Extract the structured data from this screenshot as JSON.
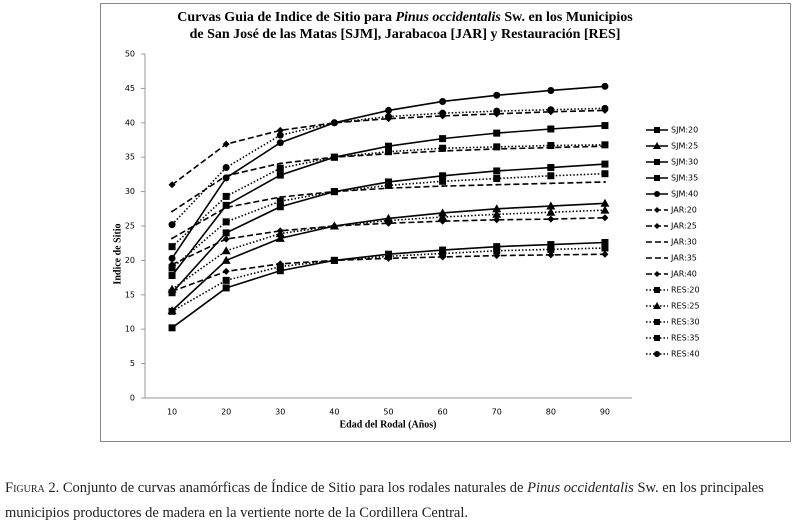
{
  "chart_data": {
    "type": "line",
    "title": [
      [
        "Curvas Guia de Indice de Sitio para ",
        "Pinus occidentalis",
        " Sw. en los Municipios"
      ],
      [
        "de San José de las Matas [SJM], Jarabacoa [JAR] y Restauración [RES]"
      ]
    ],
    "x_label": "Edad del Rodal (Años)",
    "y_label": "Indice de Sitio",
    "categories": [
      "10",
      "20",
      "30",
      "40",
      "50",
      "60",
      "70",
      "80",
      "90"
    ],
    "ylim": [
      0,
      50
    ],
    "yticks": [
      0,
      5,
      10,
      15,
      20,
      25,
      30,
      35,
      40,
      45,
      50
    ],
    "grid": false,
    "legend": "right",
    "series": [
      {
        "name": "SJM:20",
        "color": "#000000",
        "line_style": "solid",
        "marker": "square",
        "values": [
          10.2,
          16,
          18.5,
          20,
          20.9,
          21.5,
          22,
          22.3,
          22.6
        ]
      },
      {
        "name": "SJM:25",
        "color": "#000000",
        "line_style": "solid",
        "marker": "triangle",
        "values": [
          12.7,
          20,
          23.2,
          25,
          26.1,
          26.9,
          27.5,
          27.9,
          28.3
        ]
      },
      {
        "name": "SJM:30",
        "color": "#000000",
        "line_style": "solid",
        "marker": "square",
        "values": [
          15.3,
          24,
          27.8,
          30,
          31.4,
          32.3,
          33,
          33.5,
          34
        ]
      },
      {
        "name": "SJM:35",
        "color": "#000000",
        "line_style": "solid",
        "marker": "square",
        "values": [
          17.8,
          28,
          32.4,
          35,
          36.6,
          37.7,
          38.5,
          39.1,
          39.6
        ]
      },
      {
        "name": "SJM:40",
        "color": "#000000",
        "line_style": "solid",
        "marker": "circle",
        "values": [
          20.3,
          32,
          37.1,
          40,
          41.8,
          43.1,
          44,
          44.7,
          45.3
        ]
      },
      {
        "name": "JAR:20",
        "color": "#000000",
        "line_style": "dashed",
        "marker": "diamond",
        "values": [
          15.5,
          18.4,
          19.5,
          20,
          20.3,
          20.5,
          20.7,
          20.8,
          20.9
        ]
      },
      {
        "name": "JAR:25",
        "color": "#000000",
        "line_style": "dashed",
        "marker": "diamond",
        "values": [
          19.4,
          23.1,
          24.3,
          25,
          25.4,
          25.7,
          25.9,
          26,
          26.2
        ]
      },
      {
        "name": "JAR:30",
        "color": "#000000",
        "line_style": "dashed",
        "marker": "none",
        "values": [
          23.2,
          27.7,
          29.2,
          30,
          30.5,
          30.8,
          31,
          31.2,
          31.4
        ]
      },
      {
        "name": "JAR:35",
        "color": "#000000",
        "line_style": "dashed",
        "marker": "none",
        "values": [
          27.1,
          32.3,
          34.1,
          35,
          35.5,
          35.9,
          36.2,
          36.4,
          36.6
        ]
      },
      {
        "name": "JAR:40",
        "color": "#000000",
        "line_style": "dashed",
        "marker": "diamond",
        "values": [
          31,
          36.9,
          38.9,
          40,
          40.6,
          41,
          41.3,
          41.6,
          41.8
        ]
      },
      {
        "name": "RES:20",
        "color": "#000000",
        "line_style": "dotted",
        "marker": "square",
        "values": [
          12.6,
          17.1,
          19.1,
          20,
          20.6,
          21,
          21.4,
          21.6,
          21.8
        ]
      },
      {
        "name": "RES:25",
        "color": "#000000",
        "line_style": "dotted",
        "marker": "triangle",
        "values": [
          15.8,
          21.4,
          23.9,
          25,
          25.8,
          26.3,
          26.7,
          27,
          27.3
        ]
      },
      {
        "name": "RES:30",
        "color": "#000000",
        "line_style": "dotted",
        "marker": "square",
        "values": [
          18.9,
          25.6,
          28.6,
          30,
          30.9,
          31.5,
          31.9,
          32.3,
          32.6
        ]
      },
      {
        "name": "RES:35",
        "color": "#000000",
        "line_style": "dotted",
        "marker": "square",
        "values": [
          22,
          29.3,
          33.4,
          35,
          35.8,
          36.3,
          36.5,
          36.7,
          36.8
        ]
      },
      {
        "name": "RES:40",
        "color": "#000000",
        "line_style": "dotted",
        "marker": "circle",
        "values": [
          25.2,
          33.5,
          38.2,
          40,
          40.9,
          41.4,
          41.7,
          41.9,
          42.1
        ]
      }
    ]
  },
  "caption": {
    "label": "Figura 2.",
    "parts": [
      "Conjunto de curvas anamórficas de Índice de Sitio para los rodales naturales de ",
      "Pinus occidentalis",
      " Sw. en los principales municipios productores de madera en la vertiente norte de la Cordillera Central."
    ]
  }
}
